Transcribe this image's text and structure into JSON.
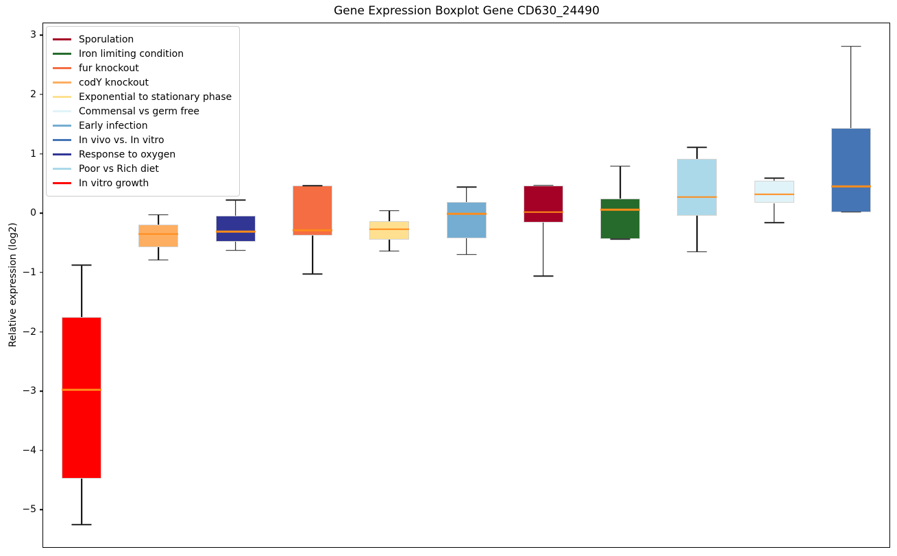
{
  "chart_data": {
    "type": "boxplot",
    "title": "Gene Expression Boxplot Gene CD630_24490",
    "ylabel": "Relative expression (log2)",
    "xlabel": "",
    "ylim": [
      -5.63,
      3.2
    ],
    "yticks": [
      3,
      2,
      1,
      0,
      -1,
      -2,
      -3,
      -4,
      -5
    ],
    "grid": false,
    "legend_position": "upper left",
    "median_color": "#ff8c1a",
    "whisker_color": "#000000",
    "box_edge_color": "#d3d3d3",
    "series": [
      {
        "label": "In vitro growth",
        "color": "#ff0000",
        "whislo": -5.25,
        "q1": -4.48,
        "med": -2.98,
        "q3": -1.75,
        "whishi": -0.88
      },
      {
        "label": "codY knockout",
        "color": "#fdae61",
        "whislo": -0.79,
        "q1": -0.58,
        "med": -0.35,
        "q3": -0.19,
        "whishi": -0.03
      },
      {
        "label": "Response to oxygen",
        "color": "#313695",
        "whislo": -0.63,
        "q1": -0.48,
        "med": -0.31,
        "q3": -0.04,
        "whishi": 0.22
      },
      {
        "label": "fur knockout",
        "color": "#f46d43",
        "whislo": -1.03,
        "q1": -0.38,
        "med": -0.29,
        "q3": 0.46,
        "whishi": 0.46
      },
      {
        "label": "Exponential to stationary phase",
        "color": "#fee090",
        "whislo": -0.64,
        "q1": -0.45,
        "med": -0.27,
        "q3": -0.14,
        "whishi": 0.04
      },
      {
        "label": "Early infection",
        "color": "#74add1",
        "whislo": -0.7,
        "q1": -0.42,
        "med": -0.01,
        "q3": 0.19,
        "whishi": 0.44
      },
      {
        "label": "Sporulation",
        "color": "#a50026",
        "whislo": -1.06,
        "q1": -0.16,
        "med": 0.02,
        "q3": 0.47,
        "whishi": 0.47
      },
      {
        "label": "Iron limiting condition",
        "color": "#276b2c",
        "whislo": -0.44,
        "q1": -0.44,
        "med": 0.06,
        "q3": 0.24,
        "whishi": 0.79
      },
      {
        "label": "Poor vs Rich diet",
        "color": "#abd9e9",
        "whislo": -0.65,
        "q1": -0.04,
        "med": 0.27,
        "q3": 0.91,
        "whishi": 1.11
      },
      {
        "label": "Commensal vs germ free",
        "color": "#e0f3f8",
        "whislo": -0.16,
        "q1": 0.17,
        "med": 0.32,
        "q3": 0.55,
        "whishi": 0.59
      },
      {
        "label": "In vivo vs. In vitro",
        "color": "#4575b4",
        "whislo": 0.02,
        "q1": 0.02,
        "med": 0.45,
        "q3": 1.43,
        "whishi": 2.81
      }
    ],
    "legend": [
      {
        "label": "Sporulation",
        "color": "#a50026"
      },
      {
        "label": "Iron limiting condition",
        "color": "#276b2c"
      },
      {
        "label": "fur knockout",
        "color": "#f46d43"
      },
      {
        "label": "codY knockout",
        "color": "#fdae61"
      },
      {
        "label": "Exponential to stationary phase",
        "color": "#fee090"
      },
      {
        "label": "Commensal vs germ free",
        "color": "#e0f3f8"
      },
      {
        "label": "Early infection",
        "color": "#74add1"
      },
      {
        "label": "In vivo vs. In vitro",
        "color": "#4575b4"
      },
      {
        "label": "Response to oxygen",
        "color": "#313695"
      },
      {
        "label": "Poor vs Rich diet",
        "color": "#abd9e9"
      },
      {
        "label": "In vitro growth",
        "color": "#ff0000"
      }
    ]
  }
}
